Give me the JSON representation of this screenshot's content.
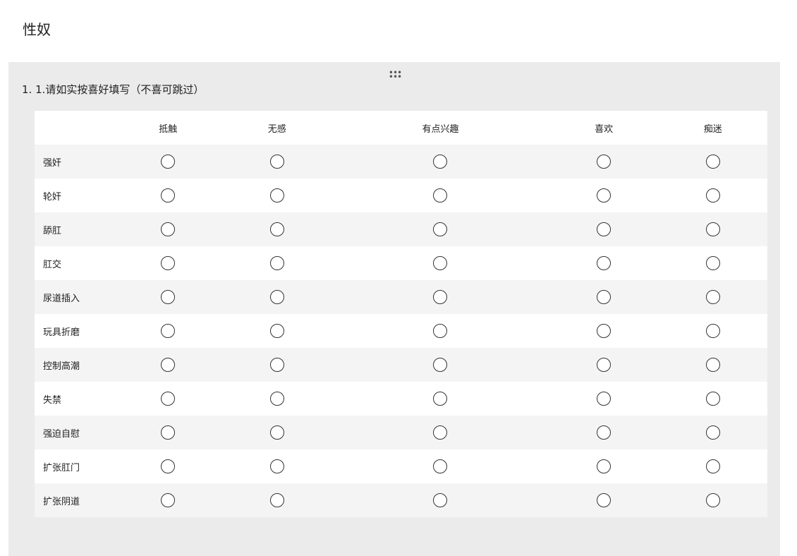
{
  "page": {
    "title": "性奴"
  },
  "question": {
    "number": "1.",
    "text": "1.请如实按喜好填写（不喜可跳过）",
    "drag_icon": "drag-handle-icon",
    "columns": [
      "抵触",
      "无感",
      "有点兴趣",
      "喜欢",
      "痴迷"
    ],
    "rows": [
      "强奸",
      "轮奸",
      "舔肛",
      "肛交",
      "尿道插入",
      "玩具折磨",
      "控制高潮",
      "失禁",
      "强迫自慰",
      "扩张肛门",
      "扩张阴道"
    ]
  }
}
